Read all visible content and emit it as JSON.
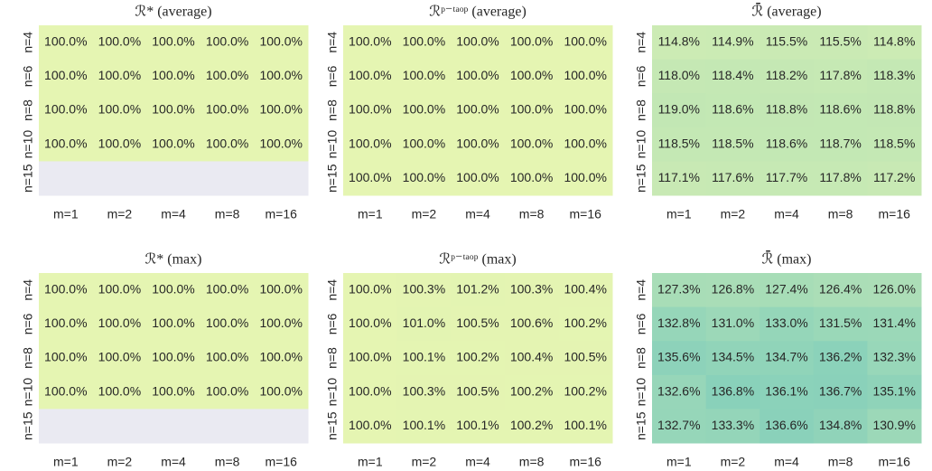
{
  "chart_data": [
    {
      "type": "heatmap",
      "title": "ℛ* (average)",
      "x": [
        "m=1",
        "m=2",
        "m=4",
        "m=8",
        "m=16"
      ],
      "y": [
        "n=4",
        "n=6",
        "n=8",
        "n=10",
        "n=15"
      ],
      "values": [
        [
          100.0,
          100.0,
          100.0,
          100.0,
          100.0
        ],
        [
          100.0,
          100.0,
          100.0,
          100.0,
          100.0
        ],
        [
          100.0,
          100.0,
          100.0,
          100.0,
          100.0
        ],
        [
          100.0,
          100.0,
          100.0,
          100.0,
          100.0
        ],
        [
          null,
          null,
          null,
          null,
          null
        ]
      ],
      "value_labels": [
        [
          "100.0%",
          "100.0%",
          "100.0%",
          "100.0%",
          "100.0%"
        ],
        [
          "100.0%",
          "100.0%",
          "100.0%",
          "100.0%",
          "100.0%"
        ],
        [
          "100.0%",
          "100.0%",
          "100.0%",
          "100.0%",
          "100.0%"
        ],
        [
          "100.0%",
          "100.0%",
          "100.0%",
          "100.0%",
          "100.0%"
        ],
        [
          null,
          null,
          null,
          null,
          null
        ]
      ],
      "clim": [
        95,
        140
      ],
      "colormap": [
        "#edf8b1",
        "#c7e9b4",
        "#7fcdbb"
      ],
      "missing_color": "#eaeaf2"
    },
    {
      "type": "heatmap",
      "title": "ℛᵖ⁻ᵗᵃᵒᵖ (average)",
      "x": [
        "m=1",
        "m=2",
        "m=4",
        "m=8",
        "m=16"
      ],
      "y": [
        "n=4",
        "n=6",
        "n=8",
        "n=10",
        "n=15"
      ],
      "values": [
        [
          100.0,
          100.0,
          100.0,
          100.0,
          100.0
        ],
        [
          100.0,
          100.0,
          100.0,
          100.0,
          100.0
        ],
        [
          100.0,
          100.0,
          100.0,
          100.0,
          100.0
        ],
        [
          100.0,
          100.0,
          100.0,
          100.0,
          100.0
        ],
        [
          100.0,
          100.0,
          100.0,
          100.0,
          100.0
        ]
      ],
      "value_labels": [
        [
          "100.0%",
          "100.0%",
          "100.0%",
          "100.0%",
          "100.0%"
        ],
        [
          "100.0%",
          "100.0%",
          "100.0%",
          "100.0%",
          "100.0%"
        ],
        [
          "100.0%",
          "100.0%",
          "100.0%",
          "100.0%",
          "100.0%"
        ],
        [
          "100.0%",
          "100.0%",
          "100.0%",
          "100.0%",
          "100.0%"
        ],
        [
          "100.0%",
          "100.0%",
          "100.0%",
          "100.0%",
          "100.0%"
        ]
      ],
      "clim": [
        95,
        140
      ],
      "colormap": [
        "#edf8b1",
        "#c7e9b4",
        "#7fcdbb"
      ],
      "missing_color": "#eaeaf2"
    },
    {
      "type": "heatmap",
      "title": "ℛ̄ (average)",
      "x": [
        "m=1",
        "m=2",
        "m=4",
        "m=8",
        "m=16"
      ],
      "y": [
        "n=4",
        "n=6",
        "n=8",
        "n=10",
        "n=15"
      ],
      "values": [
        [
          114.8,
          114.9,
          115.5,
          115.5,
          114.8
        ],
        [
          118.0,
          118.4,
          118.2,
          117.8,
          118.3
        ],
        [
          119.0,
          118.6,
          118.8,
          118.6,
          118.8
        ],
        [
          118.5,
          118.5,
          118.6,
          118.7,
          118.5
        ],
        [
          117.1,
          117.6,
          117.7,
          117.8,
          117.2
        ]
      ],
      "value_labels": [
        [
          "114.8%",
          "114.9%",
          "115.5%",
          "115.5%",
          "114.8%"
        ],
        [
          "118.0%",
          "118.4%",
          "118.2%",
          "117.8%",
          "118.3%"
        ],
        [
          "119.0%",
          "118.6%",
          "118.8%",
          "118.6%",
          "118.8%"
        ],
        [
          "118.5%",
          "118.5%",
          "118.6%",
          "118.7%",
          "118.5%"
        ],
        [
          "117.1%",
          "117.6%",
          "117.7%",
          "117.8%",
          "117.2%"
        ]
      ],
      "clim": [
        95,
        140
      ],
      "colormap": [
        "#edf8b1",
        "#c7e9b4",
        "#7fcdbb"
      ],
      "missing_color": "#eaeaf2"
    },
    {
      "type": "heatmap",
      "title": "ℛ* (max)",
      "x": [
        "m=1",
        "m=2",
        "m=4",
        "m=8",
        "m=16"
      ],
      "y": [
        "n=4",
        "n=6",
        "n=8",
        "n=10",
        "n=15"
      ],
      "values": [
        [
          100.0,
          100.0,
          100.0,
          100.0,
          100.0
        ],
        [
          100.0,
          100.0,
          100.0,
          100.0,
          100.0
        ],
        [
          100.0,
          100.0,
          100.0,
          100.0,
          100.0
        ],
        [
          100.0,
          100.0,
          100.0,
          100.0,
          100.0
        ],
        [
          null,
          null,
          null,
          null,
          null
        ]
      ],
      "value_labels": [
        [
          "100.0%",
          "100.0%",
          "100.0%",
          "100.0%",
          "100.0%"
        ],
        [
          "100.0%",
          "100.0%",
          "100.0%",
          "100.0%",
          "100.0%"
        ],
        [
          "100.0%",
          "100.0%",
          "100.0%",
          "100.0%",
          "100.0%"
        ],
        [
          "100.0%",
          "100.0%",
          "100.0%",
          "100.0%",
          "100.0%"
        ],
        [
          null,
          null,
          null,
          null,
          null
        ]
      ],
      "clim": [
        95,
        140
      ],
      "colormap": [
        "#edf8b1",
        "#c7e9b4",
        "#7fcdbb"
      ],
      "missing_color": "#eaeaf2"
    },
    {
      "type": "heatmap",
      "title": "ℛᵖ⁻ᵗᵃᵒᵖ (max)",
      "x": [
        "m=1",
        "m=2",
        "m=4",
        "m=8",
        "m=16"
      ],
      "y": [
        "n=4",
        "n=6",
        "n=8",
        "n=10",
        "n=15"
      ],
      "values": [
        [
          100.0,
          100.3,
          101.2,
          100.3,
          100.4
        ],
        [
          100.0,
          101.0,
          100.5,
          100.6,
          100.2
        ],
        [
          100.0,
          100.1,
          100.2,
          100.4,
          100.5
        ],
        [
          100.0,
          100.3,
          100.5,
          100.2,
          100.2
        ],
        [
          100.0,
          100.1,
          100.1,
          100.2,
          100.1
        ]
      ],
      "value_labels": [
        [
          "100.0%",
          "100.3%",
          "101.2%",
          "100.3%",
          "100.4%"
        ],
        [
          "100.0%",
          "101.0%",
          "100.5%",
          "100.6%",
          "100.2%"
        ],
        [
          "100.0%",
          "100.1%",
          "100.2%",
          "100.4%",
          "100.5%"
        ],
        [
          "100.0%",
          "100.3%",
          "100.5%",
          "100.2%",
          "100.2%"
        ],
        [
          "100.0%",
          "100.1%",
          "100.1%",
          "100.2%",
          "100.1%"
        ]
      ],
      "clim": [
        95,
        140
      ],
      "colormap": [
        "#edf8b1",
        "#c7e9b4",
        "#7fcdbb"
      ],
      "missing_color": "#eaeaf2"
    },
    {
      "type": "heatmap",
      "title": "ℛ̄ (max)",
      "x": [
        "m=1",
        "m=2",
        "m=4",
        "m=8",
        "m=16"
      ],
      "y": [
        "n=4",
        "n=6",
        "n=8",
        "n=10",
        "n=15"
      ],
      "values": [
        [
          127.3,
          126.8,
          127.4,
          126.4,
          126.0
        ],
        [
          132.8,
          131.0,
          133.0,
          131.5,
          131.4
        ],
        [
          135.6,
          134.5,
          134.7,
          136.2,
          132.3
        ],
        [
          132.6,
          136.8,
          136.1,
          136.7,
          135.1
        ],
        [
          132.7,
          133.3,
          136.6,
          134.8,
          130.9
        ]
      ],
      "value_labels": [
        [
          "127.3%",
          "126.8%",
          "127.4%",
          "126.4%",
          "126.0%"
        ],
        [
          "132.8%",
          "131.0%",
          "133.0%",
          "131.5%",
          "131.4%"
        ],
        [
          "135.6%",
          "134.5%",
          "134.7%",
          "136.2%",
          "132.3%"
        ],
        [
          "132.6%",
          "136.8%",
          "136.1%",
          "136.7%",
          "135.1%"
        ],
        [
          "132.7%",
          "133.3%",
          "136.6%",
          "134.8%",
          "130.9%"
        ]
      ],
      "clim": [
        95,
        140
      ],
      "colormap": [
        "#edf8b1",
        "#c7e9b4",
        "#7fcdbb"
      ],
      "missing_color": "#eaeaf2"
    }
  ]
}
